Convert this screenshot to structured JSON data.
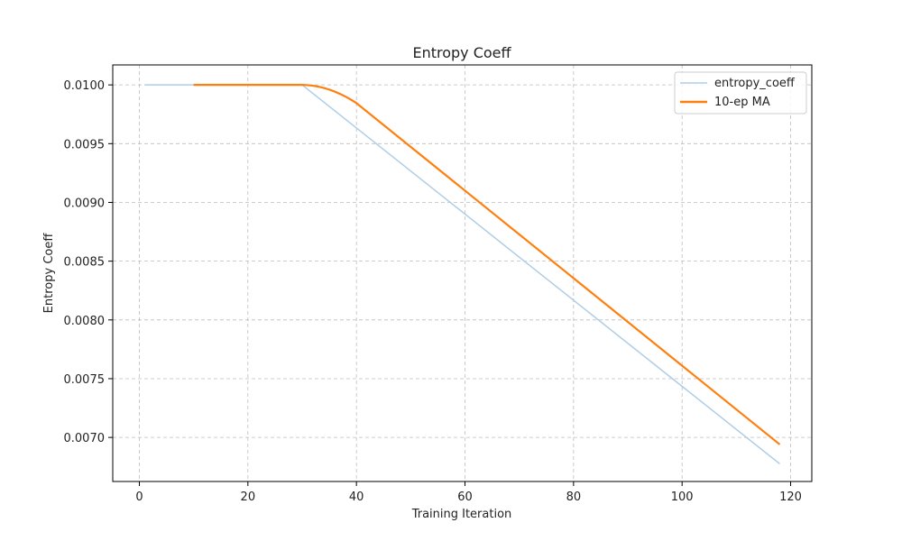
{
  "chart_data": {
    "type": "line",
    "title": "Entropy Coeff",
    "xlabel": "Training Iteration",
    "ylabel": "Entropy Coeff",
    "xlim": [
      -4.9,
      123.9
    ],
    "ylim": [
      0.006625,
      0.01017
    ],
    "xticks": [
      0,
      20,
      40,
      60,
      80,
      100,
      120
    ],
    "xtick_labels": [
      "0",
      "20",
      "40",
      "60",
      "80",
      "100",
      "120"
    ],
    "yticks": [
      0.007,
      0.0075,
      0.008,
      0.0085,
      0.009,
      0.0095,
      0.01
    ],
    "ytick_labels": [
      "0.0070",
      "0.0075",
      "0.0080",
      "0.0085",
      "0.0090",
      "0.0095",
      "0.0100"
    ],
    "grid": true,
    "legend": "top-right",
    "series": [
      {
        "name": "entropy_coeff",
        "color": "#aecde6",
        "x": [
          1,
          30,
          118
        ],
        "y": [
          0.01,
          0.01,
          0.006775
        ]
      },
      {
        "name": "10-ep MA",
        "color": "#ff7f0e",
        "x": [
          10,
          30,
          31,
          32,
          33,
          34,
          35,
          36,
          37,
          38,
          39,
          40,
          118
        ],
        "y": [
          0.01,
          0.01,
          0.009998,
          0.009993,
          0.009985,
          0.009974,
          0.00996,
          0.009943,
          0.009923,
          0.0099,
          0.009874,
          0.009845,
          0.00694
        ]
      }
    ]
  }
}
